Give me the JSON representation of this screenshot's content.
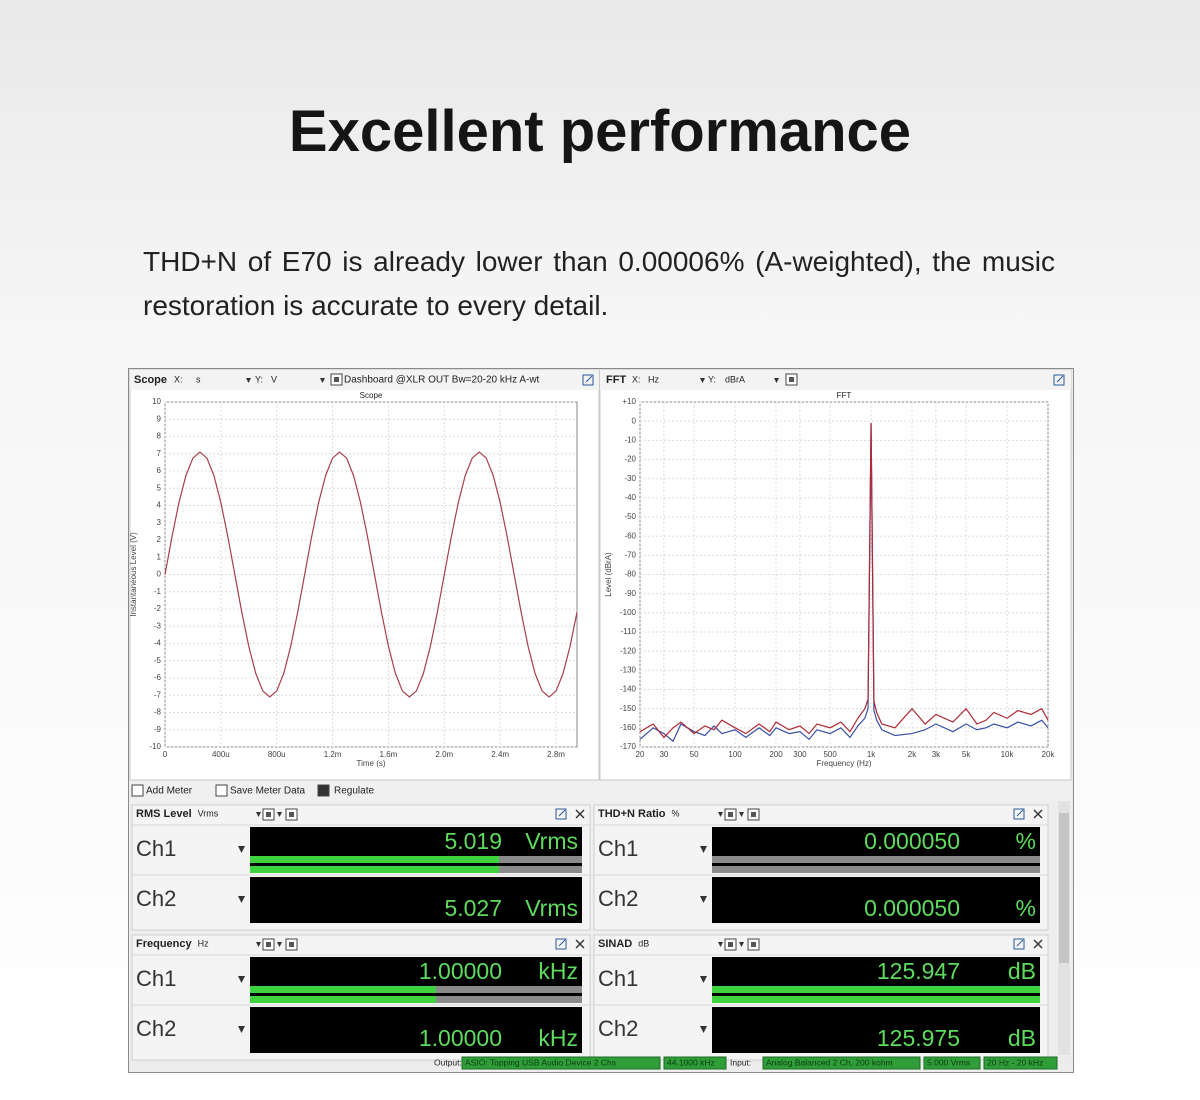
{
  "header": {
    "title": "Excellent performance",
    "description": "THD+N of E70 is already lower than 0.00006% (A-weighted), the music restoration is accurate to every detail."
  },
  "scope": {
    "toolbar": {
      "name": "Scope",
      "x_label": "X:",
      "x_unit": "s",
      "y_label": "Y:",
      "y_unit": "V",
      "dashboard": "Dashboard @XLR OUT Bw=20-20 kHz A-wt"
    },
    "chart_data": {
      "type": "line",
      "title": "Scope",
      "x_label": "Time (s)",
      "y_label": "Instantaneous Level (V)",
      "x": [
        0,
        5e-05,
        0.0001,
        0.00015,
        0.0002,
        0.00025,
        0.0003,
        0.00035,
        0.0004,
        0.00045,
        0.0005,
        0.00055,
        0.0006,
        0.00065,
        0.0007,
        0.00075,
        0.0008,
        0.00085,
        0.0009,
        0.00095,
        0.001,
        0.00105,
        0.0011,
        0.00115,
        0.0012,
        0.00125,
        0.0013,
        0.00135,
        0.0014,
        0.00145,
        0.0015,
        0.00155,
        0.0016,
        0.00165,
        0.0017,
        0.00175,
        0.0018,
        0.00185,
        0.0019,
        0.00195,
        0.002,
        0.00205,
        0.0021,
        0.00215,
        0.0022,
        0.00225,
        0.0023,
        0.00235,
        0.0024,
        0.00245,
        0.0025,
        0.00255,
        0.0026,
        0.00265,
        0.0027,
        0.00275,
        0.0028,
        0.00285,
        0.0029,
        0.00295
      ],
      "series": [
        {
          "color": "#a8404c",
          "values": [
            0,
            2.19,
            4.17,
            5.74,
            6.75,
            7.1,
            6.75,
            5.74,
            4.17,
            2.19,
            0,
            -2.19,
            -4.17,
            -5.74,
            -6.75,
            -7.1,
            -6.75,
            -5.74,
            -4.17,
            -2.19,
            0,
            2.19,
            4.17,
            5.74,
            6.75,
            7.1,
            6.75,
            5.74,
            4.17,
            2.19,
            0,
            -2.19,
            -4.17,
            -5.74,
            -6.75,
            -7.1,
            -6.75,
            -5.74,
            -4.17,
            -2.19,
            0,
            2.19,
            4.17,
            5.74,
            6.75,
            7.1,
            6.75,
            5.74,
            4.17,
            2.19,
            0,
            -2.19,
            -4.17,
            -5.74,
            -6.75,
            -7.1,
            -6.75,
            -5.74,
            -4.17,
            -2.19
          ]
        }
      ],
      "xlim": [
        0,
        0.00295
      ],
      "ylim": [
        -10,
        10
      ],
      "xticks": [
        0,
        {
          "value": 0.0004,
          "label": "400u"
        },
        {
          "value": 0.0008,
          "label": "800u"
        },
        {
          "value": 0.0012,
          "label": "1.2m"
        },
        {
          "value": 0.0016,
          "label": "1.6m"
        },
        {
          "value": 0.002,
          "label": "2.0m"
        },
        {
          "value": 0.0024,
          "label": "2.4m"
        },
        {
          "value": 0.0028,
          "label": "2.8m"
        }
      ],
      "yticks": [
        -10,
        -9,
        -8,
        -7,
        -6,
        -5,
        -4,
        -3,
        -2,
        -1,
        0,
        1,
        2,
        3,
        4,
        5,
        6,
        7,
        8,
        9,
        10
      ],
      "grid": true,
      "log_x": false
    }
  },
  "fft": {
    "toolbar": {
      "name": "FFT",
      "x_label": "X:",
      "x_unit": "Hz",
      "y_label": "Y:",
      "y_unit": "dBrA"
    },
    "chart_data": {
      "type": "line",
      "title": "FFT",
      "x_label": "Frequency (Hz)",
      "y_label": "Level (dBrA)",
      "x": [
        20,
        25,
        30,
        35,
        40,
        50,
        60,
        70,
        80,
        100,
        120,
        150,
        180,
        200,
        250,
        300,
        350,
        400,
        500,
        600,
        700,
        800,
        900,
        950,
        1000,
        1050,
        1100,
        1200,
        1500,
        2000,
        2500,
        3000,
        4000,
        5000,
        6000,
        7000,
        8000,
        10000,
        12000,
        15000,
        18000,
        20000
      ],
      "series": [
        {
          "color": "#3a4fa8",
          "values": [
            -166,
            -160,
            -163,
            -167,
            -158,
            -162,
            -164,
            -159,
            -163,
            -161,
            -165,
            -160,
            -164,
            -160,
            -163,
            -162,
            -166,
            -161,
            -163,
            -160,
            -165,
            -159,
            -155,
            -150,
            -1,
            -151,
            -156,
            -161,
            -164,
            -163,
            -161,
            -158,
            -162,
            -158,
            -161,
            -160,
            -158,
            -160,
            -157,
            -159,
            -156,
            -160
          ]
        },
        {
          "color": "#b02a36",
          "values": [
            -162,
            -158,
            -165,
            -160,
            -157,
            -163,
            -159,
            -161,
            -156,
            -160,
            -163,
            -158,
            -162,
            -157,
            -161,
            -159,
            -163,
            -158,
            -160,
            -157,
            -162,
            -155,
            -150,
            -145,
            -1,
            -146,
            -152,
            -158,
            -160,
            -150,
            -158,
            -153,
            -157,
            -150,
            -158,
            -156,
            -152,
            -155,
            -151,
            -153,
            -150,
            -156
          ]
        }
      ],
      "xlim": [
        20,
        20000
      ],
      "ylim": [
        -170,
        10
      ],
      "xticks": [
        20,
        30,
        50,
        100,
        200,
        300,
        500,
        {
          "value": 1000,
          "label": "1k"
        },
        {
          "value": 2000,
          "label": "2k"
        },
        {
          "value": 3000,
          "label": "3k"
        },
        {
          "value": 5000,
          "label": "5k"
        },
        {
          "value": 10000,
          "label": "10k"
        },
        {
          "value": 20000,
          "label": "20k"
        }
      ],
      "yticks": [
        {
          "value": 10,
          "label": "+10"
        },
        0,
        -10,
        -20,
        -30,
        -40,
        -50,
        -60,
        -70,
        -80,
        -90,
        -100,
        -110,
        -120,
        -130,
        -140,
        -150,
        -160,
        -170
      ],
      "grid": true,
      "log_x": true
    }
  },
  "meter_toolbar": [
    "Add Meter",
    "Save Meter Data",
    "Regulate"
  ],
  "meters": [
    {
      "name": "RMS Level",
      "unit": "Vrms",
      "channels": [
        {
          "label": "Ch1",
          "reading": "5.019",
          "unit": "Vrms"
        },
        {
          "label": "Ch2",
          "reading": "5.027",
          "unit": "Vrms"
        }
      ]
    },
    {
      "name": "THD+N Ratio",
      "unit": "%",
      "channels": [
        {
          "label": "Ch1",
          "reading": "0.000050",
          "unit": "%"
        },
        {
          "label": "Ch2",
          "reading": "0.000050",
          "unit": "%"
        }
      ]
    },
    {
      "name": "Frequency",
      "unit": "Hz",
      "channels": [
        {
          "label": "Ch1",
          "reading": "1.00000",
          "unit": "kHz"
        },
        {
          "label": "Ch2",
          "reading": "1.00000",
          "unit": "kHz"
        }
      ]
    },
    {
      "name": "SINAD",
      "unit": "dB",
      "channels": [
        {
          "label": "Ch1",
          "reading": "125.947",
          "unit": "dB"
        },
        {
          "label": "Ch2",
          "reading": "125.975",
          "unit": "dB"
        }
      ]
    }
  ],
  "status": {
    "output_label": "Output:",
    "output_device": "ASIO: Topping USB Audio Device 2 Chs",
    "output_rate": "44.1000 kHz",
    "input_label": "Input:",
    "input_device": "Analog Balanced 2 Ch, 200 kohm",
    "input_range": "5.000 Vrms",
    "input_bandwidth": "20 Hz - 20 kHz"
  }
}
